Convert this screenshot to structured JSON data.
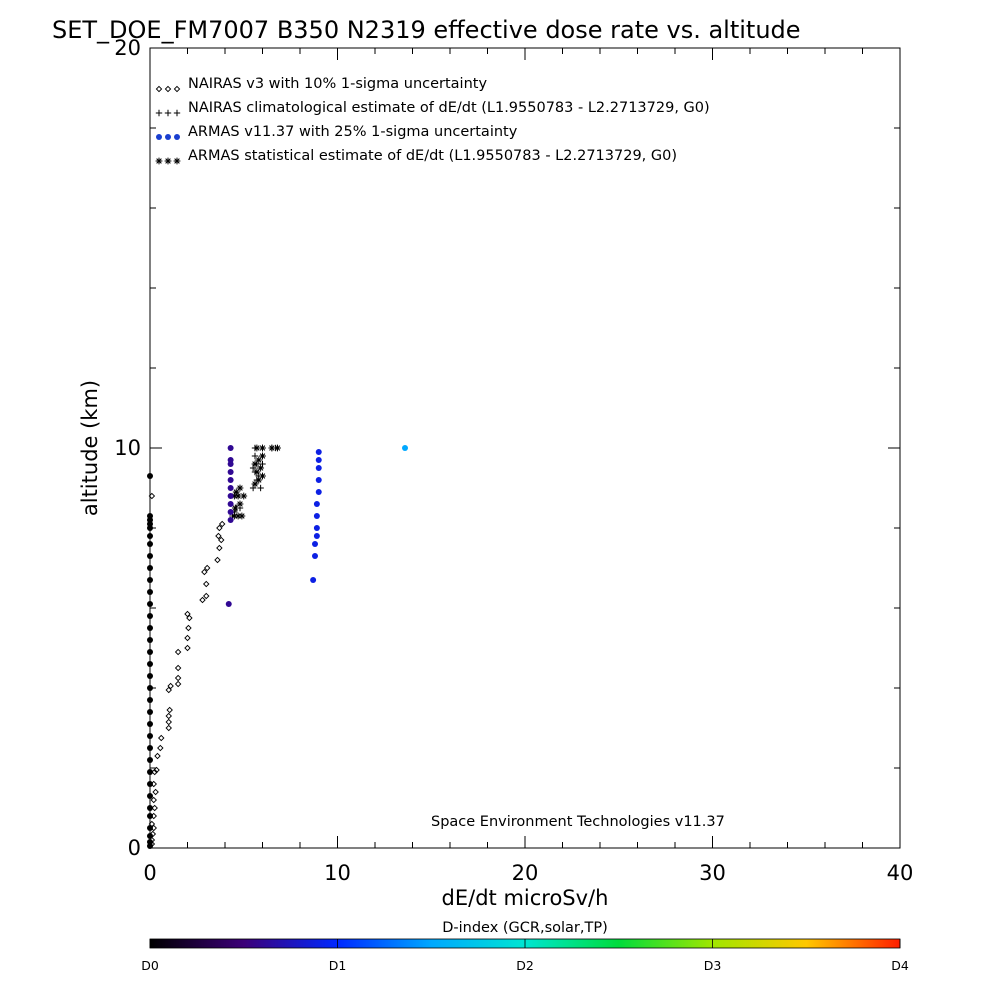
{
  "chart_data": {
    "type": "scatter",
    "title": "SET_DOE_FM7007  B350   N2319  effective dose rate vs. altitude",
    "xlabel": "dE/dt microSv/h",
    "ylabel": "altitude (km)",
    "xlim": [
      0,
      40
    ],
    "ylim": [
      0,
      20
    ],
    "x_ticks": [
      "0",
      "10",
      "20",
      "30",
      "40"
    ],
    "y_ticks": [
      "0",
      "10",
      "20"
    ],
    "legend_position": "top-left",
    "legend": [
      {
        "marker": "diamond",
        "label": "NAIRAS v3 with 10% 1-sigma uncertainty"
      },
      {
        "marker": "plus",
        "label": "NAIRAS climatological estimate of dE/dt (L1.9550783 - L2.2713729, G0)"
      },
      {
        "marker": "dot",
        "label": "ARMAS v11.37 with 25% 1-sigma uncertainty",
        "color": "#1a3fd0"
      },
      {
        "marker": "asterisk",
        "label": "ARMAS statistical estimate of dE/dt (L1.9550783 - L2.2713729, G0)"
      }
    ],
    "annotation": "Space Environment Technologies v11.37",
    "colorbar": {
      "label": "D-index (GCR,solar,TP)",
      "ticks": [
        {
          "label": "D0",
          "value": 0
        },
        {
          "label": "D1",
          "value": 1
        },
        {
          "label": "D2",
          "value": 2
        },
        {
          "label": "D3",
          "value": 3
        },
        {
          "label": "D4",
          "value": 4
        }
      ]
    },
    "series": [
      {
        "marker": "diamond",
        "color": "#000000",
        "points": [
          [
            0.1,
            0.1
          ],
          [
            0.1,
            0.2
          ],
          [
            0.15,
            0.35
          ],
          [
            0.2,
            0.5
          ],
          [
            0.1,
            0.6
          ],
          [
            0.2,
            0.8
          ],
          [
            0.25,
            1.0
          ],
          [
            0.2,
            1.2
          ],
          [
            0.3,
            1.4
          ],
          [
            0.2,
            1.6
          ],
          [
            0.25,
            1.9
          ],
          [
            0.35,
            1.95
          ],
          [
            0.4,
            2.3
          ],
          [
            0.55,
            2.5
          ],
          [
            0.6,
            2.75
          ],
          [
            1.0,
            3.0
          ],
          [
            1.0,
            3.15
          ],
          [
            1.0,
            3.3
          ],
          [
            1.05,
            3.45
          ],
          [
            1.0,
            3.95
          ],
          [
            1.1,
            4.05
          ],
          [
            1.5,
            4.1
          ],
          [
            1.5,
            4.25
          ],
          [
            1.5,
            4.5
          ],
          [
            1.5,
            4.9
          ],
          [
            2.0,
            5.0
          ],
          [
            2.0,
            5.25
          ],
          [
            2.05,
            5.5
          ],
          [
            2.1,
            5.75
          ],
          [
            2.0,
            5.85
          ],
          [
            2.8,
            6.2
          ],
          [
            3.0,
            6.3
          ],
          [
            3.0,
            6.6
          ],
          [
            2.9,
            6.9
          ],
          [
            3.05,
            7.0
          ],
          [
            3.6,
            7.2
          ],
          [
            3.7,
            7.5
          ],
          [
            3.8,
            7.7
          ],
          [
            3.65,
            7.8
          ],
          [
            3.7,
            8.0
          ],
          [
            3.85,
            8.1
          ],
          [
            0.1,
            8.8
          ]
        ]
      },
      {
        "marker": "plus",
        "color": "#000000",
        "points": [
          [
            4.4,
            8.3
          ],
          [
            4.5,
            8.4
          ],
          [
            4.6,
            8.5
          ],
          [
            4.8,
            8.5
          ],
          [
            5.5,
            9.0
          ],
          [
            5.6,
            9.1
          ],
          [
            5.7,
            9.2
          ],
          [
            5.8,
            9.3
          ],
          [
            5.9,
            9.0
          ],
          [
            5.6,
            9.4
          ],
          [
            5.5,
            9.5
          ],
          [
            5.7,
            9.6
          ],
          [
            6.0,
            9.6
          ],
          [
            5.6,
            9.8
          ],
          [
            6.0,
            9.8
          ],
          [
            5.6,
            10.0
          ],
          [
            6.0,
            10.0
          ],
          [
            6.5,
            10.0
          ],
          [
            6.7,
            10.0
          ]
        ]
      },
      {
        "marker": "asterisk",
        "color": "#000000",
        "points": [
          [
            4.5,
            8.3
          ],
          [
            4.7,
            8.3
          ],
          [
            4.9,
            8.3
          ],
          [
            4.55,
            8.5
          ],
          [
            4.8,
            8.6
          ],
          [
            4.5,
            8.8
          ],
          [
            4.7,
            8.8
          ],
          [
            5.0,
            8.8
          ],
          [
            4.6,
            8.9
          ],
          [
            4.8,
            9.0
          ],
          [
            5.6,
            9.1
          ],
          [
            5.8,
            9.2
          ],
          [
            6.0,
            9.3
          ],
          [
            5.7,
            9.4
          ],
          [
            5.9,
            9.5
          ],
          [
            5.6,
            9.6
          ],
          [
            5.8,
            9.7
          ],
          [
            6.0,
            9.8
          ],
          [
            5.7,
            10.0
          ],
          [
            6.0,
            10.0
          ],
          [
            6.5,
            10.0
          ],
          [
            6.8,
            10.0
          ]
        ]
      },
      {
        "marker": "dot",
        "color_scale": "d_index",
        "points": [
          [
            0.0,
            0.05,
            0
          ],
          [
            0.0,
            0.15,
            0
          ],
          [
            0.0,
            0.3,
            0
          ],
          [
            0.0,
            0.5,
            0
          ],
          [
            0.0,
            0.8,
            0
          ],
          [
            0.0,
            1.0,
            0
          ],
          [
            0.0,
            1.3,
            0
          ],
          [
            0.0,
            1.6,
            0
          ],
          [
            0.0,
            1.9,
            0
          ],
          [
            0.0,
            2.2,
            0
          ],
          [
            0.0,
            2.5,
            0
          ],
          [
            0.0,
            2.8,
            0
          ],
          [
            0.0,
            3.1,
            0
          ],
          [
            0.0,
            3.4,
            0
          ],
          [
            0.0,
            3.7,
            0
          ],
          [
            0.0,
            4.0,
            0
          ],
          [
            0.0,
            4.3,
            0
          ],
          [
            0.0,
            4.6,
            0
          ],
          [
            0.0,
            4.9,
            0
          ],
          [
            0.0,
            5.2,
            0
          ],
          [
            0.0,
            5.5,
            0
          ],
          [
            0.0,
            5.8,
            0
          ],
          [
            0.0,
            6.1,
            0
          ],
          [
            0.0,
            6.4,
            0
          ],
          [
            0.0,
            6.7,
            0
          ],
          [
            0.0,
            7.0,
            0
          ],
          [
            0.0,
            7.3,
            0
          ],
          [
            0.0,
            7.6,
            0
          ],
          [
            0.0,
            7.8,
            0
          ],
          [
            0.0,
            8.0,
            0
          ],
          [
            0.0,
            8.1,
            0
          ],
          [
            0.0,
            8.2,
            0
          ],
          [
            0.0,
            8.3,
            0
          ],
          [
            0.0,
            9.3,
            0
          ],
          [
            4.2,
            6.1,
            0.6
          ],
          [
            4.3,
            8.2,
            0.6
          ],
          [
            4.3,
            8.4,
            0.6
          ],
          [
            4.3,
            8.6,
            0.6
          ],
          [
            4.3,
            8.8,
            0.6
          ],
          [
            4.3,
            9.0,
            0.6
          ],
          [
            4.3,
            9.2,
            0.6
          ],
          [
            4.3,
            9.4,
            0.6
          ],
          [
            4.3,
            9.6,
            0.6
          ],
          [
            4.3,
            9.7,
            0.6
          ],
          [
            4.3,
            10.0,
            0.6
          ],
          [
            8.7,
            6.7,
            0.9
          ],
          [
            8.8,
            7.3,
            0.9
          ],
          [
            8.8,
            7.6,
            0.9
          ],
          [
            8.9,
            7.8,
            0.9
          ],
          [
            8.9,
            8.0,
            0.9
          ],
          [
            8.9,
            8.3,
            0.9
          ],
          [
            8.9,
            8.6,
            0.9
          ],
          [
            9.0,
            8.9,
            0.9
          ],
          [
            9.0,
            9.2,
            0.9
          ],
          [
            9.0,
            9.5,
            0.9
          ],
          [
            9.0,
            9.7,
            0.9
          ],
          [
            9.0,
            9.9,
            0.9
          ],
          [
            13.6,
            10.0,
            1.5
          ]
        ]
      }
    ]
  }
}
